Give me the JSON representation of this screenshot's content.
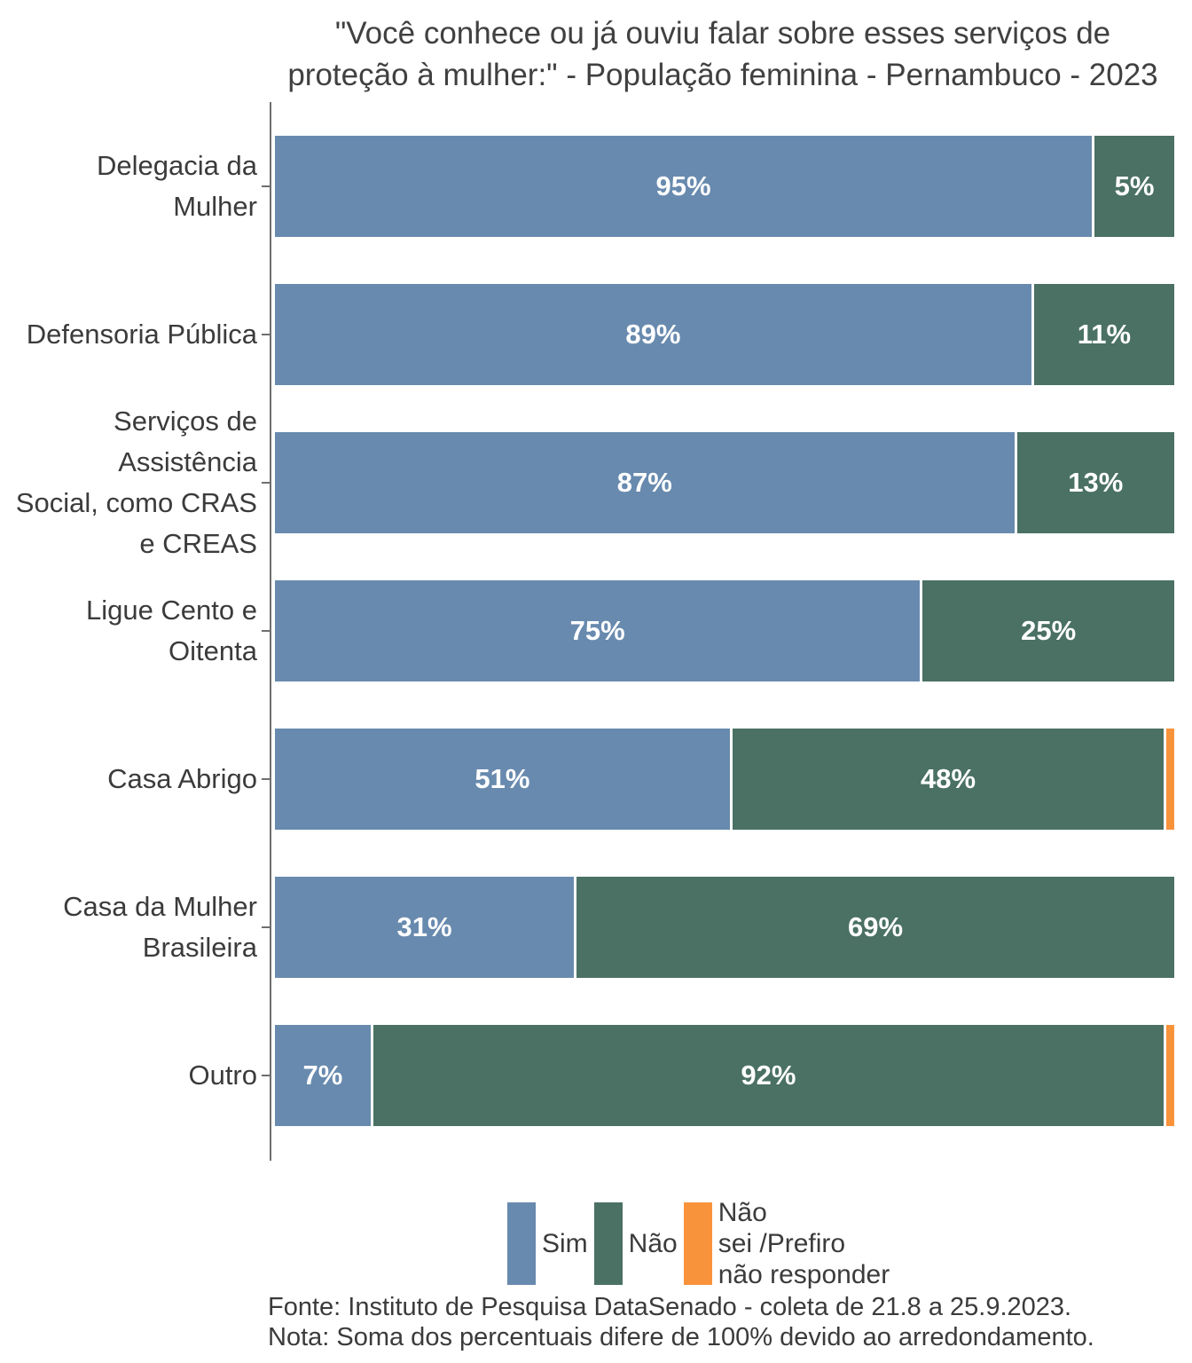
{
  "title": {
    "line1": "\"Você conhece ou já ouviu falar sobre esses serviços de",
    "line2": "proteção à mulher:\" - População feminina - Pernambuco - 2023"
  },
  "legend": {
    "items": [
      {
        "key": "sim",
        "label": "Sim",
        "color": "#688aae"
      },
      {
        "key": "nao",
        "label": "Não",
        "color": "#4a7163"
      },
      {
        "key": "nao_sei",
        "label": "Não\nsei /Prefiro\nnão responder",
        "color": "#f9933b"
      }
    ]
  },
  "footer": {
    "line1": "Fonte: Instituto de Pesquisa DataSenado - coleta de 21.8 a 25.9.2023.",
    "line2": "Nota: Soma dos percentuais difere de 100% devido ao arredondamento."
  },
  "chart_data": {
    "type": "bar",
    "orientation": "horizontal",
    "stacked": true,
    "unit": "percent",
    "xlim": [
      0,
      100
    ],
    "grid": false,
    "legend_position": "bottom",
    "series": [
      {
        "key": "sim",
        "name": "Sim",
        "color": "#688aae"
      },
      {
        "key": "nao",
        "name": "Não",
        "color": "#4a7163"
      },
      {
        "key": "nao_sei",
        "name": "Não sei /Prefiro não responder",
        "color": "#f9933b"
      }
    ],
    "categories": [
      "Delegacia da Mulher",
      "Defensoria Pública",
      "Serviços de Assistência Social, como CRAS e CREAS",
      "Ligue Cento e Oitenta",
      "Casa Abrigo",
      "Casa da Mulher Brasileira",
      "Outro"
    ],
    "rows": [
      {
        "category_lines": [
          "Delegacia da",
          "Mulher"
        ],
        "values": [
          95,
          5,
          0
        ],
        "labels": [
          "95%",
          "5%",
          ""
        ]
      },
      {
        "category_lines": [
          "Defensoria Pública"
        ],
        "values": [
          89,
          11,
          0
        ],
        "labels": [
          "89%",
          "11%",
          ""
        ]
      },
      {
        "category_lines": [
          "Serviços de",
          "Assistência",
          "Social, como CRAS",
          "e CREAS"
        ],
        "values": [
          87,
          13,
          0
        ],
        "labels": [
          "87%",
          "13%",
          ""
        ]
      },
      {
        "category_lines": [
          "Ligue Cento e",
          "Oitenta"
        ],
        "values": [
          75,
          25,
          0
        ],
        "labels": [
          "75%",
          "25%",
          ""
        ]
      },
      {
        "category_lines": [
          "Casa Abrigo"
        ],
        "values": [
          51,
          48,
          1
        ],
        "labels": [
          "51%",
          "48%",
          ""
        ]
      },
      {
        "category_lines": [
          "Casa da Mulher",
          "Brasileira"
        ],
        "values": [
          31,
          69,
          0
        ],
        "labels": [
          "31%",
          "69%",
          ""
        ]
      },
      {
        "category_lines": [
          "Outro"
        ],
        "values": [
          7,
          92,
          1
        ],
        "labels": [
          "7%",
          "92%",
          ""
        ]
      }
    ]
  }
}
